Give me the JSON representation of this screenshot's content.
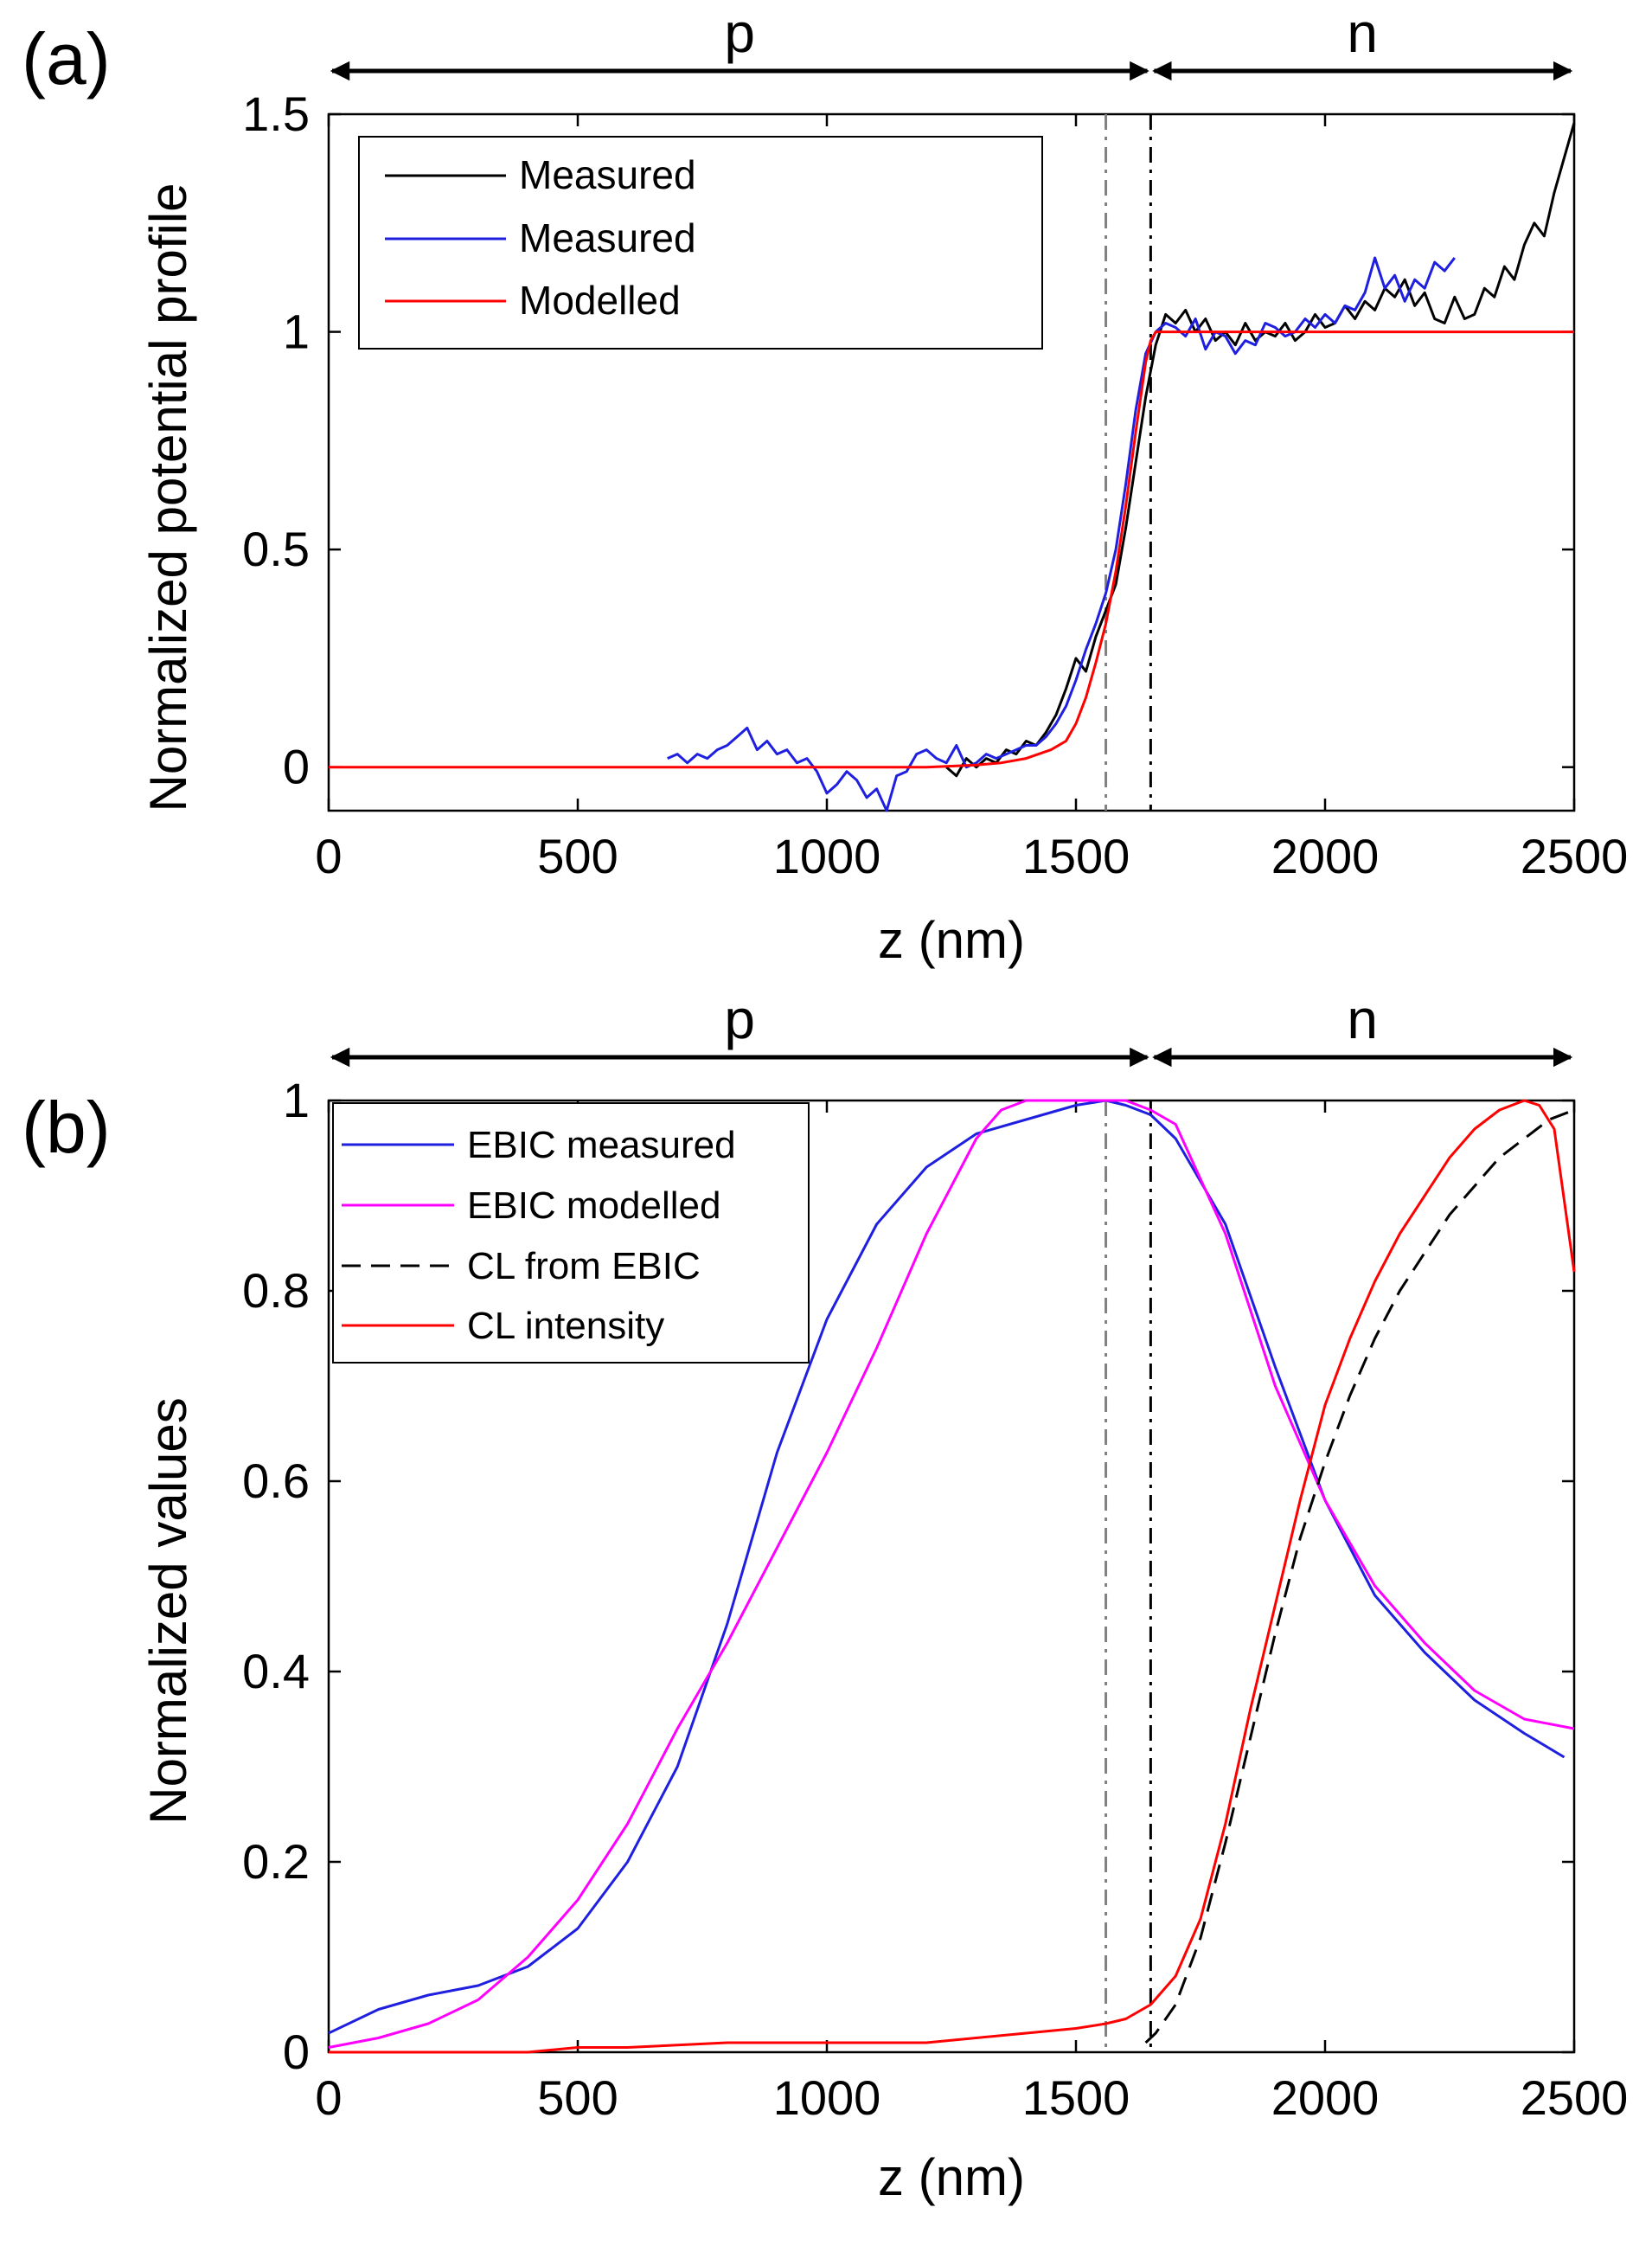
{
  "chart_data": [
    {
      "panel_label": "(a)",
      "type": "line",
      "xlabel": "z (nm)",
      "ylabel": "Normalized potential profile",
      "xlim": [
        0,
        2500
      ],
      "ylim": [
        -0.1,
        1.5
      ],
      "xticks": [
        0,
        500,
        1000,
        1500,
        2000,
        2500
      ],
      "yticks": [
        0,
        0.5,
        1,
        1.5
      ],
      "regions": [
        {
          "label": "p",
          "from": 0,
          "to": 1650
        },
        {
          "label": "n",
          "from": 1650,
          "to": 2500
        }
      ],
      "vlines": [
        {
          "x": 1560,
          "color": "#808080",
          "style": "dashdot"
        },
        {
          "x": 1650,
          "color": "#000000",
          "style": "dashdot"
        }
      ],
      "legend_position": "top-left",
      "series": [
        {
          "name": "Measured",
          "color": "#000000",
          "x": [
            1240,
            1260,
            1280,
            1300,
            1320,
            1340,
            1360,
            1380,
            1400,
            1420,
            1440,
            1460,
            1480,
            1500,
            1520,
            1540,
            1560,
            1580,
            1600,
            1620,
            1640,
            1660,
            1680,
            1700,
            1720,
            1740,
            1760,
            1780,
            1800,
            1820,
            1840,
            1860,
            1880,
            1900,
            1920,
            1940,
            1960,
            1980,
            2000,
            2020,
            2040,
            2060,
            2080,
            2100,
            2120,
            2140,
            2160,
            2180,
            2200,
            2220,
            2240,
            2260,
            2280,
            2300,
            2320,
            2340,
            2360,
            2380,
            2400,
            2420,
            2440,
            2460,
            2480,
            2500
          ],
          "y": [
            0.0,
            -0.02,
            0.02,
            0.0,
            0.02,
            0.01,
            0.04,
            0.03,
            0.06,
            0.05,
            0.08,
            0.12,
            0.18,
            0.25,
            0.22,
            0.3,
            0.36,
            0.42,
            0.55,
            0.7,
            0.85,
            0.97,
            1.04,
            1.02,
            1.05,
            1.0,
            1.03,
            0.98,
            1.0,
            0.97,
            1.02,
            0.98,
            1.0,
            0.99,
            1.02,
            0.98,
            1.0,
            1.04,
            1.01,
            1.02,
            1.06,
            1.03,
            1.07,
            1.05,
            1.1,
            1.08,
            1.12,
            1.06,
            1.09,
            1.03,
            1.02,
            1.08,
            1.03,
            1.04,
            1.1,
            1.08,
            1.15,
            1.12,
            1.2,
            1.25,
            1.22,
            1.32,
            1.4,
            1.48
          ]
        },
        {
          "name": "Measured",
          "color": "#1f1fe0",
          "x": [
            680,
            700,
            720,
            740,
            760,
            780,
            800,
            820,
            840,
            860,
            880,
            900,
            920,
            940,
            960,
            980,
            1000,
            1020,
            1040,
            1060,
            1080,
            1100,
            1120,
            1140,
            1160,
            1180,
            1200,
            1220,
            1240,
            1260,
            1280,
            1300,
            1320,
            1340,
            1360,
            1380,
            1400,
            1420,
            1440,
            1460,
            1480,
            1500,
            1520,
            1540,
            1560,
            1580,
            1600,
            1620,
            1640,
            1660,
            1680,
            1700,
            1720,
            1740,
            1760,
            1780,
            1800,
            1820,
            1840,
            1860,
            1880,
            1900,
            1920,
            1940,
            1960,
            1980,
            2000,
            2020,
            2040,
            2060,
            2080,
            2100,
            2120,
            2140,
            2160,
            2180,
            2200,
            2220,
            2240,
            2260
          ],
          "y": [
            0.02,
            0.03,
            0.01,
            0.03,
            0.02,
            0.04,
            0.05,
            0.07,
            0.09,
            0.04,
            0.06,
            0.03,
            0.04,
            0.01,
            0.02,
            -0.01,
            -0.06,
            -0.04,
            -0.01,
            -0.03,
            -0.07,
            -0.05,
            -0.1,
            -0.02,
            -0.01,
            0.03,
            0.04,
            0.02,
            0.01,
            0.05,
            0.0,
            0.01,
            0.03,
            0.02,
            0.03,
            0.04,
            0.05,
            0.05,
            0.07,
            0.1,
            0.14,
            0.2,
            0.27,
            0.33,
            0.4,
            0.5,
            0.65,
            0.82,
            0.95,
            1.0,
            1.02,
            1.01,
            0.99,
            1.03,
            0.96,
            1.0,
            0.99,
            0.95,
            0.98,
            0.97,
            1.02,
            1.01,
            0.99,
            1.0,
            1.03,
            1.01,
            1.04,
            1.02,
            1.06,
            1.05,
            1.09,
            1.17,
            1.1,
            1.13,
            1.07,
            1.12,
            1.1,
            1.16,
            1.14,
            1.17
          ]
        },
        {
          "name": "Modelled",
          "color": "#ff0000",
          "x": [
            0,
            200,
            400,
            600,
            800,
            1000,
            1200,
            1300,
            1350,
            1400,
            1450,
            1480,
            1500,
            1520,
            1540,
            1560,
            1580,
            1600,
            1620,
            1640,
            1650,
            1660,
            1700,
            1800,
            2000,
            2200,
            2400,
            2500
          ],
          "y": [
            0,
            0,
            0,
            0,
            0,
            0,
            0,
            0.005,
            0.01,
            0.02,
            0.04,
            0.06,
            0.1,
            0.16,
            0.24,
            0.33,
            0.45,
            0.6,
            0.77,
            0.93,
            0.98,
            1.0,
            1.0,
            1.0,
            1.0,
            1.0,
            1.0,
            1.0
          ]
        }
      ]
    },
    {
      "panel_label": "(b)",
      "type": "line",
      "xlabel": "z (nm)",
      "ylabel": "Normalized values",
      "xlim": [
        0,
        2500
      ],
      "ylim": [
        0,
        1
      ],
      "xticks": [
        0,
        500,
        1000,
        1500,
        2000,
        2500
      ],
      "yticks": [
        0,
        0.2,
        0.4,
        0.6,
        0.8,
        1
      ],
      "regions": [
        {
          "label": "p",
          "from": 0,
          "to": 1650
        },
        {
          "label": "n",
          "from": 1650,
          "to": 2500
        }
      ],
      "vlines": [
        {
          "x": 1560,
          "color": "#808080",
          "style": "dashdot"
        },
        {
          "x": 1650,
          "color": "#000000",
          "style": "dashdot"
        }
      ],
      "legend_position": "top-left",
      "series": [
        {
          "name": "EBIC measured",
          "color": "#1f1fe0",
          "dash": "none",
          "x": [
            0,
            100,
            200,
            300,
            400,
            500,
            600,
            700,
            800,
            900,
            1000,
            1100,
            1200,
            1300,
            1400,
            1500,
            1560,
            1600,
            1650,
            1700,
            1800,
            1900,
            2000,
            2100,
            2200,
            2300,
            2400,
            2480
          ],
          "y": [
            0.02,
            0.045,
            0.06,
            0.07,
            0.09,
            0.13,
            0.2,
            0.3,
            0.45,
            0.63,
            0.77,
            0.87,
            0.93,
            0.965,
            0.98,
            0.995,
            1.0,
            0.995,
            0.985,
            0.96,
            0.87,
            0.72,
            0.58,
            0.48,
            0.42,
            0.37,
            0.335,
            0.31
          ]
        },
        {
          "name": "EBIC modelled",
          "color": "#ff00ff",
          "dash": "none",
          "x": [
            0,
            100,
            200,
            300,
            400,
            500,
            600,
            700,
            800,
            900,
            1000,
            1100,
            1200,
            1300,
            1350,
            1400,
            1450,
            1500,
            1560,
            1600,
            1650,
            1700,
            1800,
            1900,
            2000,
            2100,
            2200,
            2300,
            2400,
            2500
          ],
          "y": [
            0.005,
            0.015,
            0.03,
            0.055,
            0.1,
            0.16,
            0.24,
            0.34,
            0.43,
            0.53,
            0.63,
            0.74,
            0.86,
            0.96,
            0.99,
            1.0,
            1.0,
            1.0,
            1.0,
            1.0,
            0.99,
            0.975,
            0.86,
            0.7,
            0.58,
            0.49,
            0.43,
            0.38,
            0.35,
            0.34
          ]
        },
        {
          "name": "CL from EBIC",
          "color": "#000000",
          "dash": "dashed",
          "x": [
            1640,
            1660,
            1700,
            1750,
            1800,
            1850,
            1900,
            1950,
            2000,
            2050,
            2100,
            2150,
            2200,
            2250,
            2300,
            2350,
            2400,
            2450,
            2500
          ],
          "y": [
            0.01,
            0.02,
            0.05,
            0.12,
            0.22,
            0.33,
            0.44,
            0.54,
            0.62,
            0.69,
            0.75,
            0.8,
            0.84,
            0.88,
            0.91,
            0.94,
            0.96,
            0.98,
            0.99
          ]
        },
        {
          "name": "CL intensity",
          "color": "#ff0000",
          "dash": "none",
          "x": [
            0,
            200,
            400,
            500,
            600,
            800,
            1000,
            1200,
            1400,
            1500,
            1560,
            1600,
            1650,
            1700,
            1750,
            1800,
            1850,
            1900,
            1950,
            2000,
            2050,
            2100,
            2150,
            2200,
            2250,
            2300,
            2350,
            2400,
            2430,
            2460,
            2500
          ],
          "y": [
            0.0,
            0.0,
            0.0,
            0.005,
            0.005,
            0.01,
            0.01,
            0.01,
            0.02,
            0.025,
            0.03,
            0.035,
            0.05,
            0.08,
            0.14,
            0.24,
            0.36,
            0.47,
            0.58,
            0.68,
            0.75,
            0.81,
            0.86,
            0.9,
            0.94,
            0.97,
            0.99,
            1.0,
            0.995,
            0.97,
            0.82
          ]
        }
      ]
    }
  ]
}
